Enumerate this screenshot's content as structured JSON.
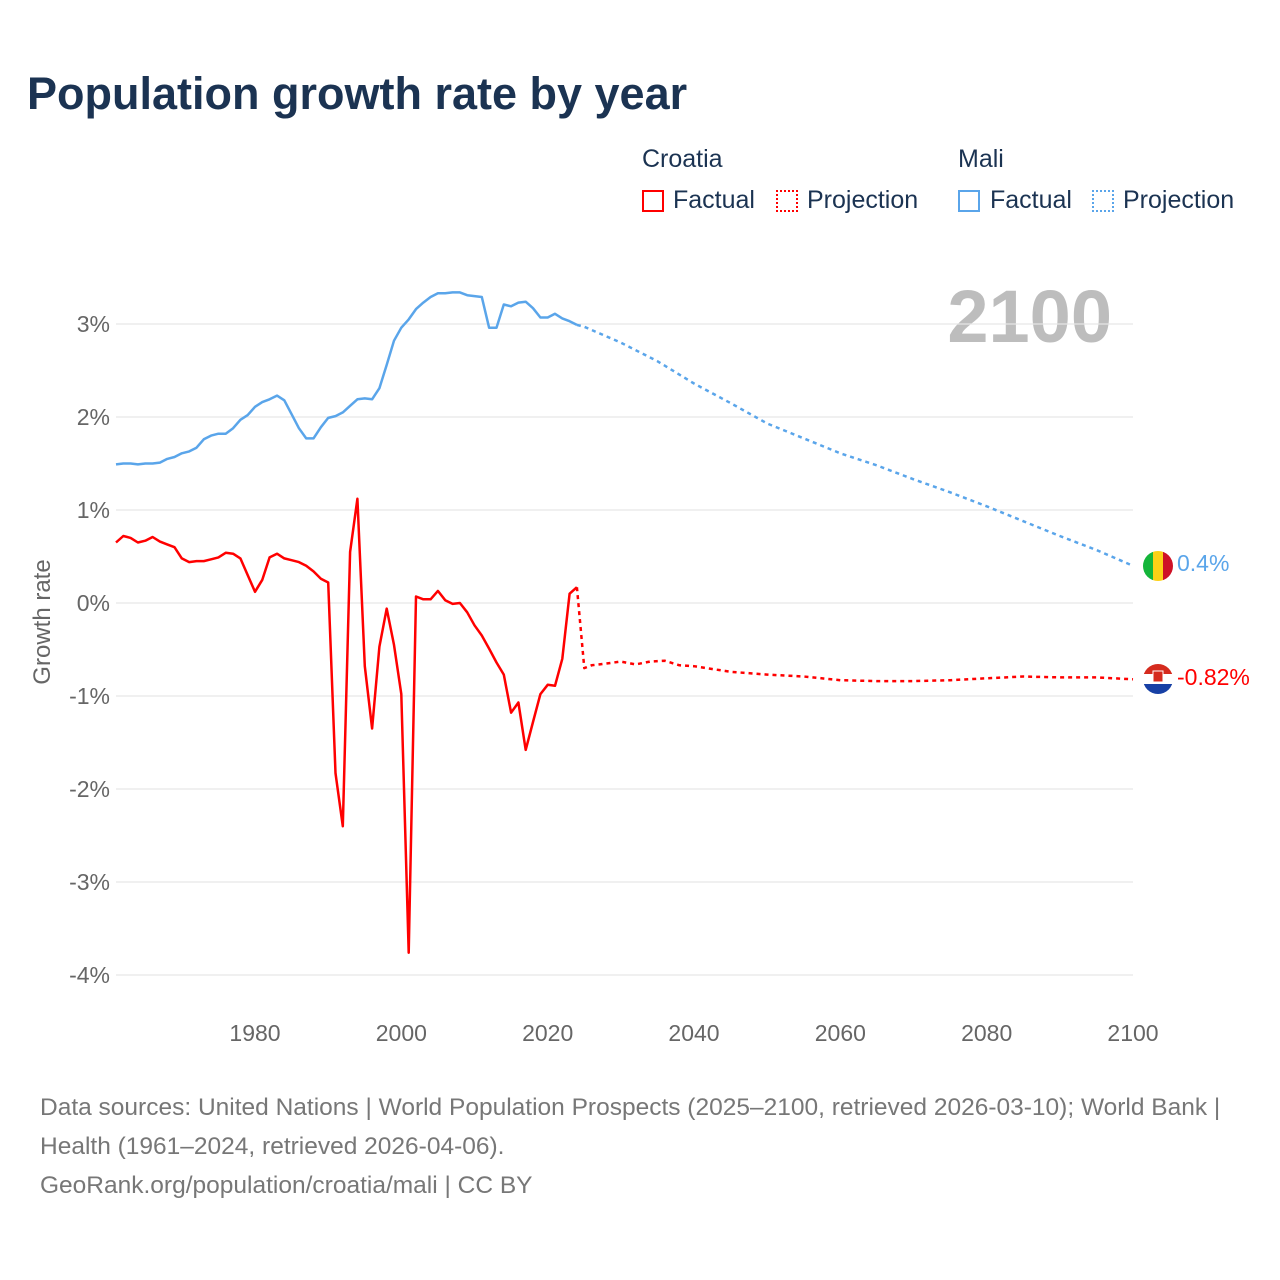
{
  "title": "Population growth rate by year",
  "legend": {
    "groups": [
      {
        "country": "Croatia",
        "factual": "Factual",
        "projection": "Projection",
        "color": "#ff0000"
      },
      {
        "country": "Mali",
        "factual": "Factual",
        "projection": "Projection",
        "color": "#5aa5ea"
      }
    ]
  },
  "year_label": "2100",
  "end_labels": {
    "mali": "0.4%",
    "croatia": "-0.82%"
  },
  "footer": {
    "sources": "Data sources: United Nations | World Population Prospects (2025–2100, retrieved 2026-03-10); World Bank | Health (1961–2024, retrieved 2026-04-06).",
    "credit": "GeoRank.org/population/croatia/mali | CC BY"
  },
  "chart_data": {
    "type": "line",
    "title": "Population growth rate by year",
    "xlabel": "",
    "ylabel": "Growth rate",
    "xlim": [
      1961,
      2100
    ],
    "ylim": [
      -4.3,
      3.3
    ],
    "xticks": [
      1980,
      2000,
      2020,
      2040,
      2060,
      2080,
      2100
    ],
    "yticks": [
      -4,
      -3,
      -2,
      -1,
      0,
      1,
      2,
      3
    ],
    "ytick_labels": [
      "-4%",
      "-3%",
      "-2%",
      "-1%",
      "0%",
      "1%",
      "2%",
      "3%"
    ],
    "grid": true,
    "legend_position": "top-right",
    "series": [
      {
        "name": "Croatia Factual",
        "color": "#ff0000",
        "dashed": false,
        "start_year": 1961,
        "values": [
          0.65,
          0.72,
          0.7,
          0.65,
          0.67,
          0.71,
          0.66,
          0.63,
          0.6,
          0.48,
          0.44,
          0.45,
          0.45,
          0.47,
          0.49,
          0.54,
          0.53,
          0.48,
          0.3,
          0.12,
          0.25,
          0.49,
          0.53,
          0.48,
          0.46,
          0.44,
          0.4,
          0.34,
          0.26,
          0.22,
          -1.83,
          -2.4,
          0.55,
          1.12,
          -0.68,
          -1.35,
          -0.47,
          -0.06,
          -0.45,
          -0.98,
          -3.76,
          0.07,
          0.04,
          0.04,
          0.13,
          0.03,
          -0.01,
          0.0,
          -0.1,
          -0.24,
          -0.35,
          -0.49,
          -0.64,
          -0.77,
          -1.18,
          -1.07,
          -1.58,
          -1.28,
          -0.98,
          -0.88,
          -0.89,
          -0.6,
          0.1,
          0.17
        ]
      },
      {
        "name": "Croatia Projection",
        "color": "#ff0000",
        "dashed": true,
        "x": [
          2024,
          2025,
          2026,
          2028,
          2030,
          2032,
          2034,
          2036,
          2038,
          2040,
          2045,
          2050,
          2055,
          2060,
          2065,
          2070,
          2075,
          2080,
          2085,
          2090,
          2095,
          2100
        ],
        "values": [
          0.17,
          -0.7,
          -0.67,
          -0.65,
          -0.63,
          -0.66,
          -0.63,
          -0.62,
          -0.67,
          -0.68,
          -0.74,
          -0.77,
          -0.79,
          -0.83,
          -0.84,
          -0.84,
          -0.83,
          -0.81,
          -0.79,
          -0.8,
          -0.8,
          -0.82
        ]
      },
      {
        "name": "Mali Factual",
        "color": "#5aa5ea",
        "dashed": false,
        "start_year": 1961,
        "values": [
          1.49,
          1.5,
          1.5,
          1.49,
          1.5,
          1.5,
          1.51,
          1.55,
          1.57,
          1.61,
          1.63,
          1.67,
          1.76,
          1.8,
          1.82,
          1.82,
          1.88,
          1.97,
          2.02,
          2.11,
          2.16,
          2.19,
          2.23,
          2.18,
          2.03,
          1.88,
          1.77,
          1.77,
          1.89,
          1.99,
          2.01,
          2.05,
          2.12,
          2.19,
          2.2,
          2.19,
          2.31,
          2.56,
          2.82,
          2.96,
          3.05,
          3.16,
          3.23,
          3.29,
          3.33,
          3.33,
          3.34,
          3.34,
          3.31,
          3.3,
          3.29,
          2.96,
          2.96,
          3.21,
          3.19,
          3.23,
          3.24,
          3.17,
          3.07,
          3.07,
          3.11,
          3.06,
          3.03,
          2.99
        ]
      },
      {
        "name": "Mali Projection",
        "color": "#5aa5ea",
        "dashed": true,
        "x": [
          2024,
          2025,
          2030,
          2035,
          2040,
          2045,
          2050,
          2055,
          2060,
          2065,
          2070,
          2075,
          2080,
          2085,
          2090,
          2095,
          2100
        ],
        "values": [
          2.99,
          2.97,
          2.8,
          2.6,
          2.36,
          2.15,
          1.93,
          1.77,
          1.61,
          1.48,
          1.33,
          1.19,
          1.04,
          0.88,
          0.72,
          0.57,
          0.4
        ]
      }
    ]
  }
}
